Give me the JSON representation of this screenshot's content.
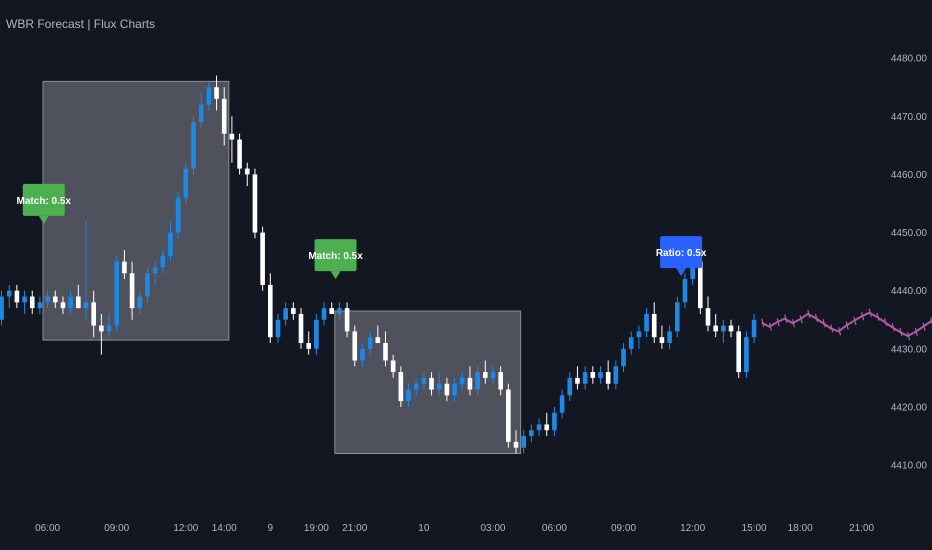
{
  "chart_data": {
    "type": "candlestick",
    "title": "WBR Forecast | Flux Charts",
    "colors": {
      "background": "#131722",
      "up": "#1e88e5",
      "down": "#ffffff",
      "forecast": "#b45aa5",
      "zone_fill": "#5a5c66",
      "zone_border": "#8a8d96",
      "match_tag": "#4caf50",
      "ratio_tag": "#2962ff"
    },
    "ylim": [
      4404,
      4490
    ],
    "y_ticks": [
      4410,
      4420,
      4430,
      4440,
      4450,
      4460,
      4470,
      4480
    ],
    "x_ticks": [
      {
        "i": 6,
        "label": "06:00"
      },
      {
        "i": 15,
        "label": "09:00"
      },
      {
        "i": 24,
        "label": "12:00"
      },
      {
        "i": 29,
        "label": "14:00"
      },
      {
        "i": 35,
        "label": "9"
      },
      {
        "i": 41,
        "label": "19:00"
      },
      {
        "i": 46,
        "label": "21:00"
      },
      {
        "i": 55,
        "label": "10"
      },
      {
        "i": 64,
        "label": "03:00"
      },
      {
        "i": 72,
        "label": "06:00"
      },
      {
        "i": 81,
        "label": "09:00"
      },
      {
        "i": 90,
        "label": "12:00"
      },
      {
        "i": 98,
        "label": "15:00"
      },
      {
        "i": 104,
        "label": "18:00"
      },
      {
        "i": 112,
        "label": "21:00"
      }
    ],
    "x_range": [
      -0.2,
      114.4
    ],
    "candles": [
      [
        4435.0,
        4440.0,
        4434.0,
        4439.0
      ],
      [
        4439.0,
        4441.0,
        4437.0,
        4440.0
      ],
      [
        4440.0,
        4441.0,
        4437.0,
        4438.0
      ],
      [
        4438.0,
        4440.0,
        4436.0,
        4439.0
      ],
      [
        4439.0,
        4440.0,
        4436.0,
        4437.0
      ],
      [
        4437.0,
        4439.0,
        4436.0,
        4438.0
      ],
      [
        4438.0,
        4440.0,
        4437.0,
        4439.0
      ],
      [
        4439.0,
        4440.0,
        4437.0,
        4438.0
      ],
      [
        4438.0,
        4439.0,
        4436.0,
        4437.0
      ],
      [
        4437.0,
        4440.0,
        4436.0,
        4439.0
      ],
      [
        4439.0,
        4441.0,
        4437.0,
        4437.0
      ],
      [
        4437.0,
        4452.0,
        4435.0,
        4438.0
      ],
      [
        4438.0,
        4440.0,
        4432.0,
        4434.0
      ],
      [
        4434.0,
        4436.0,
        4429.0,
        4433.0
      ],
      [
        4433.0,
        4436.0,
        4432.0,
        4434.0
      ],
      [
        4434.0,
        4446.0,
        4433.0,
        4445.0
      ],
      [
        4445.0,
        4447.0,
        4442.0,
        4443.0
      ],
      [
        4443.0,
        4445.0,
        4435.0,
        4437.0
      ],
      [
        4437.0,
        4440.0,
        4436.0,
        4439.0
      ],
      [
        4439.0,
        4444.0,
        4438.0,
        4443.0
      ],
      [
        4443.0,
        4445.0,
        4441.0,
        4444.0
      ],
      [
        4444.0,
        4447.0,
        4443.0,
        4446.0
      ],
      [
        4446.0,
        4452.0,
        4445.0,
        4450.0
      ],
      [
        4450.0,
        4457.0,
        4449.0,
        4456.0
      ],
      [
        4456.0,
        4462.0,
        4455.0,
        4461.0
      ],
      [
        4461.0,
        4470.0,
        4460.0,
        4469.0
      ],
      [
        4469.0,
        4474.0,
        4468.0,
        4472.0
      ],
      [
        4472.0,
        4476.0,
        4471.0,
        4475.0
      ],
      [
        4475.0,
        4477.0,
        4471.0,
        4473.0
      ],
      [
        4473.0,
        4475.0,
        4465.0,
        4467.0
      ],
      [
        4467.0,
        4470.0,
        4462.0,
        4466.0
      ],
      [
        4466.0,
        4467.0,
        4460.0,
        4461.0
      ],
      [
        4461.0,
        4462.0,
        4458.0,
        4460.0
      ],
      [
        4460.0,
        4461.0,
        4449.0,
        4450.0
      ],
      [
        4450.0,
        4451.0,
        4440.0,
        4441.0
      ],
      [
        4441.0,
        4443.0,
        4431.0,
        4432.0
      ],
      [
        4432.0,
        4436.0,
        4431.0,
        4435.0
      ],
      [
        4435.0,
        4438.0,
        4434.0,
        4437.0
      ],
      [
        4437.0,
        4438.0,
        4435.0,
        4436.0
      ],
      [
        4436.0,
        4437.0,
        4430.0,
        4431.0
      ],
      [
        4431.0,
        4433.0,
        4429.0,
        4430.0
      ],
      [
        4430.0,
        4436.0,
        4429.0,
        4435.0
      ],
      [
        4435.0,
        4438.0,
        4434.0,
        4437.0
      ],
      [
        4437.0,
        4438.0,
        4436.0,
        4436.0
      ],
      [
        4436.0,
        4438.0,
        4435.0,
        4437.0
      ],
      [
        4437.0,
        4438.0,
        4432.0,
        4433.0
      ],
      [
        4433.0,
        4434.0,
        4427.0,
        4428.0
      ],
      [
        4428.0,
        4431.0,
        4427.0,
        4430.0
      ],
      [
        4430.0,
        4433.0,
        4429.0,
        4432.0
      ],
      [
        4432.0,
        4434.0,
        4431.0,
        4431.0
      ],
      [
        4431.0,
        4433.0,
        4427.0,
        4428.0
      ],
      [
        4428.0,
        4429.0,
        4425.0,
        4426.0
      ],
      [
        4426.0,
        4427.0,
        4420.0,
        4421.0
      ],
      [
        4421.0,
        4424.0,
        4420.0,
        4423.0
      ],
      [
        4423.0,
        4425.0,
        4422.0,
        4424.0
      ],
      [
        4424.0,
        4426.0,
        4423.0,
        4425.0
      ],
      [
        4425.0,
        4426.0,
        4422.0,
        4423.0
      ],
      [
        4423.0,
        4426.0,
        4422.0,
        4424.0
      ],
      [
        4424.0,
        4425.0,
        4421.0,
        4422.0
      ],
      [
        4422.0,
        4425.0,
        4421.0,
        4424.0
      ],
      [
        4424.0,
        4426.0,
        4423.0,
        4425.0
      ],
      [
        4425.0,
        4427.0,
        4422.0,
        4423.0
      ],
      [
        4423.0,
        4427.0,
        4422.0,
        4426.0
      ],
      [
        4426.0,
        4428.0,
        4424.0,
        4425.0
      ],
      [
        4425.0,
        4427.0,
        4424.0,
        4426.0
      ],
      [
        4426.0,
        4427.0,
        4422.0,
        4423.0
      ],
      [
        4423.0,
        4424.0,
        4413.0,
        4414.0
      ],
      [
        4414.0,
        4416.0,
        4412.0,
        4413.0
      ],
      [
        4413.0,
        4416.0,
        4412.0,
        4415.0
      ],
      [
        4415.0,
        4417.0,
        4414.0,
        4416.0
      ],
      [
        4416.0,
        4418.0,
        4415.0,
        4417.0
      ],
      [
        4417.0,
        4419.0,
        4415.0,
        4416.0
      ],
      [
        4416.0,
        4420.0,
        4415.0,
        4419.0
      ],
      [
        4419.0,
        4423.0,
        4418.0,
        4422.0
      ],
      [
        4422.0,
        4426.0,
        4421.0,
        4425.0
      ],
      [
        4425.0,
        4427.0,
        4423.0,
        4424.0
      ],
      [
        4424.0,
        4427.0,
        4423.0,
        4426.0
      ],
      [
        4426.0,
        4427.0,
        4424.0,
        4425.0
      ],
      [
        4425.0,
        4427.0,
        4424.0,
        4426.0
      ],
      [
        4426.0,
        4428.0,
        4423.0,
        4424.0
      ],
      [
        4424.0,
        4428.0,
        4423.0,
        4427.0
      ],
      [
        4427.0,
        4431.0,
        4426.0,
        4430.0
      ],
      [
        4430.0,
        4433.0,
        4429.0,
        4432.0
      ],
      [
        4432.0,
        4434.0,
        4430.0,
        4433.0
      ],
      [
        4433.0,
        4437.0,
        4432.0,
        4436.0
      ],
      [
        4436.0,
        4438.0,
        4431.0,
        4432.0
      ],
      [
        4432.0,
        4434.0,
        4430.0,
        4431.0
      ],
      [
        4431.0,
        4434.0,
        4430.0,
        4433.0
      ],
      [
        4433.0,
        4439.0,
        4432.0,
        4438.0
      ],
      [
        4438.0,
        4443.0,
        4437.0,
        4442.0
      ],
      [
        4442.0,
        4446.0,
        4441.0,
        4445.0
      ],
      [
        4445.0,
        4446.0,
        4436.0,
        4437.0
      ],
      [
        4437.0,
        4439.0,
        4433.0,
        4434.0
      ],
      [
        4434.0,
        4436.0,
        4432.0,
        4433.0
      ],
      [
        4433.0,
        4435.0,
        4431.0,
        4434.0
      ],
      [
        4434.0,
        4435.0,
        4432.0,
        4433.0
      ],
      [
        4433.0,
        4434.0,
        4425.0,
        4426.0
      ],
      [
        4426.0,
        4433.0,
        4425.0,
        4432.0
      ],
      [
        4432.0,
        4436.0,
        4431.0,
        4435.0
      ]
    ],
    "forecast_start": 99,
    "forecast": [
      4434.5,
      4433.8,
      4434.6,
      4435.2,
      4434.4,
      4435.1,
      4436.0,
      4435.3,
      4434.4,
      4433.5,
      4433.0,
      4434.0,
      4434.8,
      4435.6,
      4436.2,
      4435.5,
      4434.6,
      4433.7,
      4432.9,
      4432.2,
      4432.9,
      4433.8,
      4434.7,
      4435.8,
      4437.0,
      4438.3,
      4439.2,
      4438.6,
      4437.8,
      4437.9,
      4437.2
    ],
    "match_zones": [
      {
        "start": 6,
        "end": 29,
        "top": 4476.0,
        "bottom": 4431.5
      },
      {
        "start": 44,
        "end": 67,
        "top": 4436.5,
        "bottom": 4412.0
      }
    ],
    "tags": [
      {
        "i": 5.5,
        "y": 4451.5,
        "label": "Match: 0.5x",
        "kind": "match"
      },
      {
        "i": 43.5,
        "y": 4442.0,
        "label": "Match: 0.5x",
        "kind": "match"
      },
      {
        "i": 88.5,
        "y": 4442.5,
        "label": "Ratio: 0.5x",
        "kind": "ratio"
      }
    ]
  }
}
